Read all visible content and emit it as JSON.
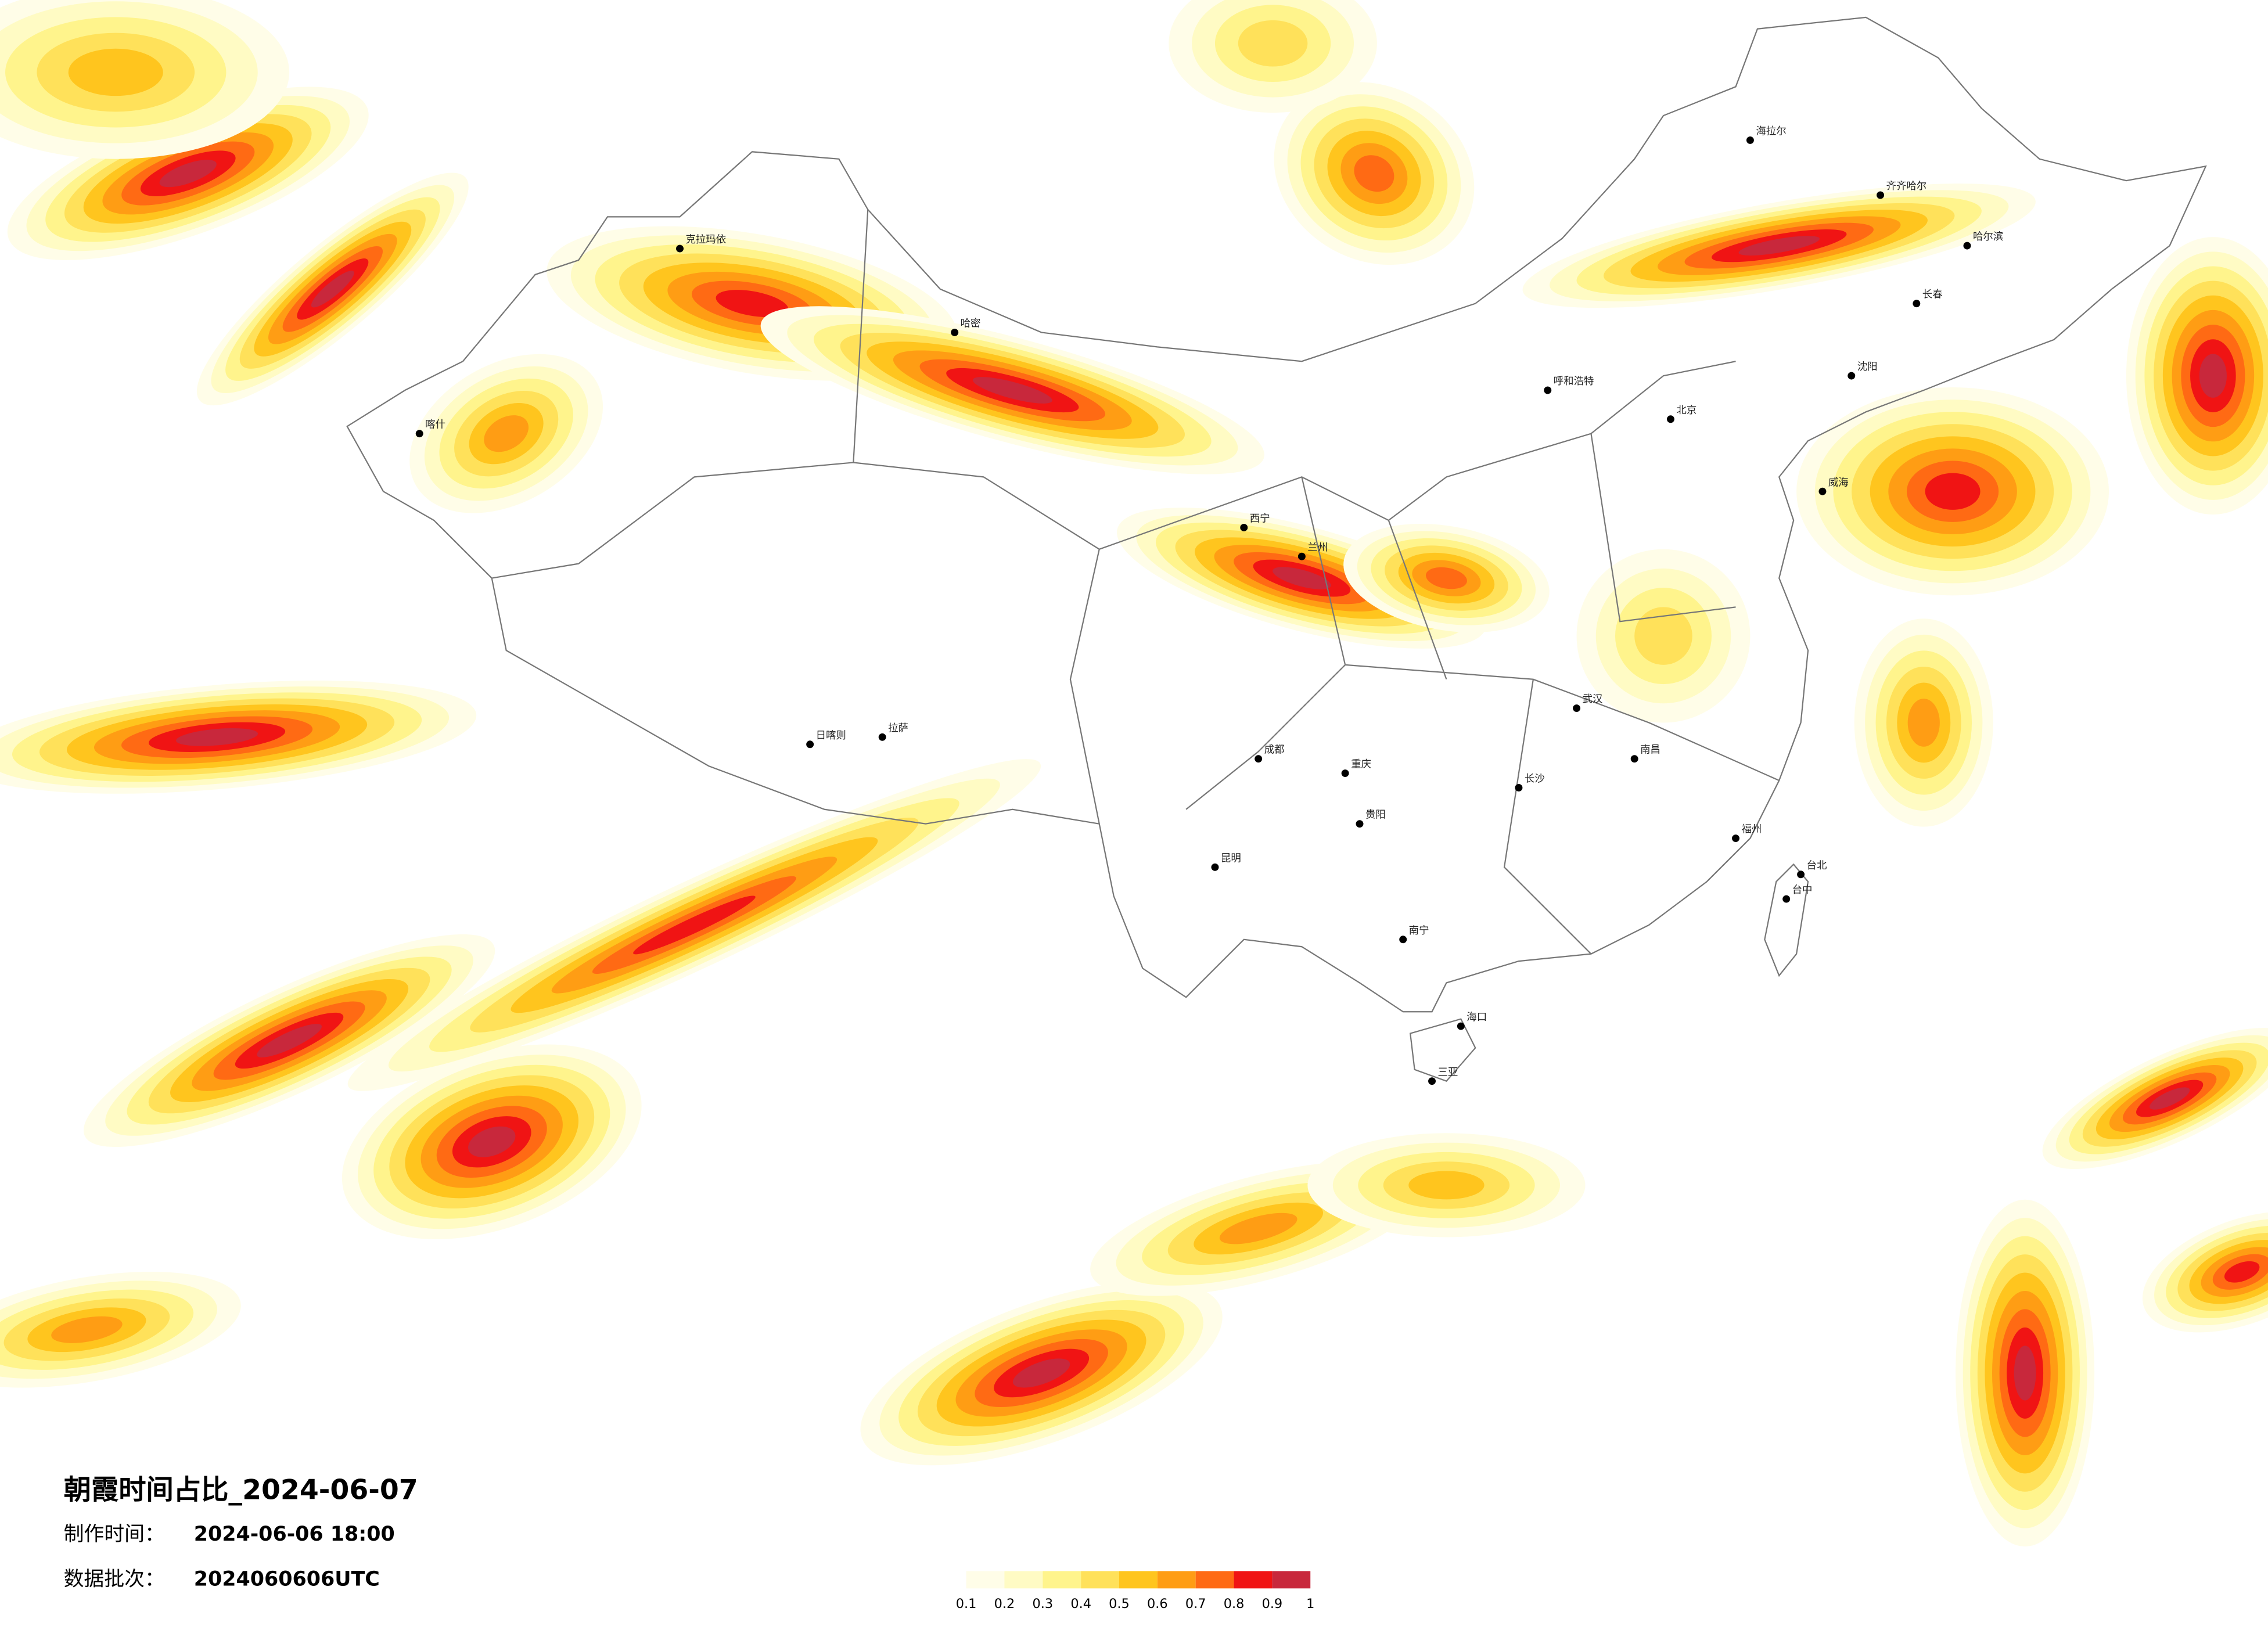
{
  "title": "朝霞时间占比_2024-06-07",
  "production": {
    "label": "制作时间：",
    "value": "2024-06-06 18:00"
  },
  "batch": {
    "label": "数据批次：",
    "value": "2024060606UTC"
  },
  "legend": {
    "ticks": [
      0.1,
      0.2,
      0.3,
      0.4,
      0.5,
      0.6,
      0.7,
      0.8,
      0.9,
      1
    ],
    "colors": [
      "#fffde8",
      "#fffbc4",
      "#fff48c",
      "#ffe15a",
      "#ffc51e",
      "#ff9d14",
      "#ff6a14",
      "#f01414",
      "#c8283c"
    ]
  },
  "cities": [
    "海拉尔",
    "齐齐哈尔",
    "哈尔滨",
    "长春",
    "沈阳",
    "威海",
    "北京",
    "呼和浩特",
    "西宁",
    "兰州",
    "成都",
    "重庆",
    "昆明",
    "贵阳",
    "南宁",
    "长沙",
    "武汉",
    "南昌",
    "福州",
    "台北",
    "台中",
    "海口",
    "三亚",
    "拉萨",
    "日喀则",
    "克拉玛依",
    "哈密",
    "喀什"
  ]
}
